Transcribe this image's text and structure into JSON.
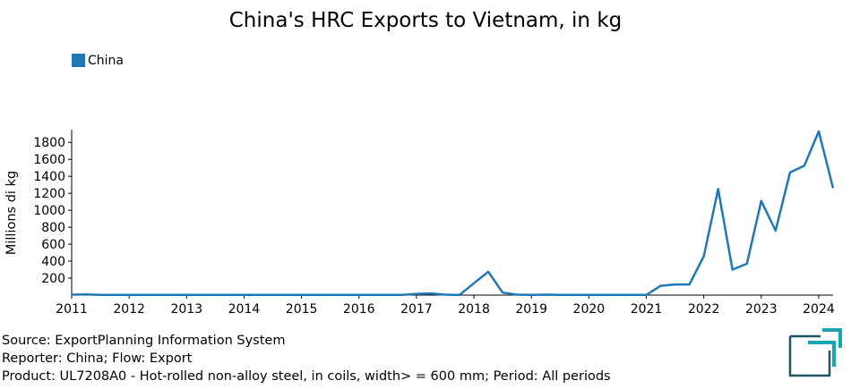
{
  "chart_data": {
    "type": "line",
    "title": "China's HRC Exports to Vietnam, in kg",
    "ylabel": "Millions di kg",
    "xlabel": "",
    "ylim": [
      0,
      1950
    ],
    "xlim": [
      2011,
      2024.25
    ],
    "y_ticks": [
      200,
      400,
      600,
      800,
      1000,
      1200,
      1400,
      1600,
      1800
    ],
    "x_ticks": [
      "2011",
      "2012",
      "2013",
      "2014",
      "2015",
      "2016",
      "2017",
      "2018",
      "2019",
      "2020",
      "2021",
      "2022",
      "2023",
      "2024"
    ],
    "legend_position": "top-left",
    "grid": false,
    "series": [
      {
        "name": "China",
        "color": "#1f77b4",
        "x": [
          "2011-Q1",
          "2011-Q2",
          "2011-Q3",
          "2011-Q4",
          "2012-Q1",
          "2012-Q2",
          "2012-Q3",
          "2012-Q4",
          "2013-Q1",
          "2013-Q2",
          "2013-Q3",
          "2013-Q4",
          "2014-Q1",
          "2014-Q2",
          "2014-Q3",
          "2014-Q4",
          "2015-Q1",
          "2015-Q2",
          "2015-Q3",
          "2015-Q4",
          "2016-Q1",
          "2016-Q2",
          "2016-Q3",
          "2016-Q4",
          "2017-Q1",
          "2017-Q2",
          "2017-Q3",
          "2017-Q4",
          "2018-Q1",
          "2018-Q2",
          "2018-Q3",
          "2018-Q4",
          "2019-Q1",
          "2019-Q2",
          "2019-Q3",
          "2019-Q4",
          "2020-Q1",
          "2020-Q2",
          "2020-Q3",
          "2020-Q4",
          "2021-Q1",
          "2021-Q2",
          "2021-Q3",
          "2021-Q4",
          "2022-Q1",
          "2022-Q2",
          "2022-Q3",
          "2022-Q4",
          "2023-Q1",
          "2023-Q2",
          "2023-Q3",
          "2023-Q4",
          "2024-Q1",
          "2024-Q2"
        ],
        "values": [
          5,
          8,
          3,
          2,
          2,
          2,
          2,
          2,
          2,
          2,
          2,
          2,
          2,
          2,
          2,
          2,
          2,
          2,
          2,
          2,
          2,
          2,
          2,
          2,
          15,
          20,
          5,
          2,
          140,
          275,
          30,
          5,
          2,
          5,
          2,
          2,
          2,
          2,
          2,
          2,
          2,
          110,
          125,
          125,
          460,
          1250,
          300,
          370,
          1110,
          760,
          1445,
          1525,
          1930,
          1260
        ]
      }
    ]
  },
  "footer": {
    "source": "Source: ExportPlanning Information System",
    "reporter": "Reporter: China; Flow: Export",
    "product": "Product: UL7208A0 - Hot-rolled non-alloy steel, in coils, width> = 600 mm; Period: All periods"
  },
  "colors": {
    "logo_dark": "#1d5560",
    "logo_accent": "#17a5b5"
  }
}
